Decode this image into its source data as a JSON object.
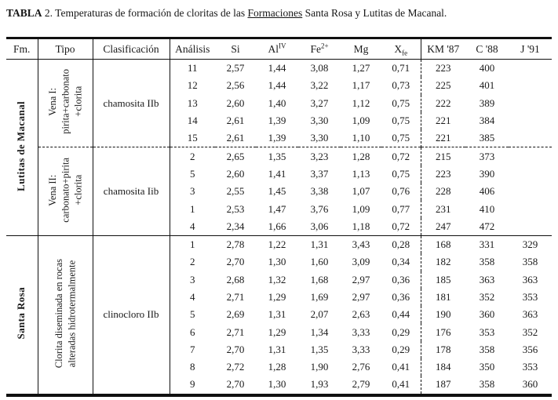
{
  "title": {
    "bold": "TABLA",
    "text_before_underline": " 2. Temperaturas de formación de cloritas de las ",
    "underlined": "Formaciones",
    "text_after_underline": " Santa Rosa y Lutitas de Macanal."
  },
  "table": {
    "columns": [
      {
        "label": "Fm."
      },
      {
        "label": "Tipo"
      },
      {
        "label": "Clasificación"
      },
      {
        "label": "Análisis"
      },
      {
        "label": "Si"
      },
      {
        "label": "Al",
        "sup": "IV"
      },
      {
        "label": "Fe",
        "sup": "2+"
      },
      {
        "label": "Mg"
      },
      {
        "label": "X",
        "sub": "fe"
      },
      {
        "label": "KM '87"
      },
      {
        "label": "C '88"
      },
      {
        "label": "J '91"
      }
    ],
    "groups": [
      {
        "fm": "Lutitas de Macanal",
        "subgroups": [
          {
            "tipo_lines": [
              "Vena I:",
              "pirita+carbonato",
              "+clorita"
            ],
            "clasificacion": "chamosita IIb",
            "rows": [
              [
                "11",
                "2,57",
                "1,44",
                "3,08",
                "1,27",
                "0,71",
                "223",
                "400",
                ""
              ],
              [
                "12",
                "2,56",
                "1,44",
                "3,22",
                "1,17",
                "0,73",
                "225",
                "401",
                ""
              ],
              [
                "13",
                "2,60",
                "1,40",
                "3,27",
                "1,12",
                "0,75",
                "222",
                "389",
                ""
              ],
              [
                "14",
                "2,61",
                "1,39",
                "3,30",
                "1,09",
                "0,75",
                "221",
                "384",
                ""
              ],
              [
                "15",
                "2,61",
                "1,39",
                "3,30",
                "1,10",
                "0,75",
                "221",
                "385",
                ""
              ]
            ]
          },
          {
            "tipo_lines": [
              "Vena II:",
              "carbonato+pirita",
              "+clorita"
            ],
            "clasificacion": "chamosita Iib",
            "rows": [
              [
                "2",
                "2,65",
                "1,35",
                "3,23",
                "1,28",
                "0,72",
                "215",
                "373",
                ""
              ],
              [
                "5",
                "2,60",
                "1,41",
                "3,37",
                "1,13",
                "0,75",
                "223",
                "390",
                ""
              ],
              [
                "3",
                "2,55",
                "1,45",
                "3,38",
                "1,07",
                "0,76",
                "228",
                "406",
                ""
              ],
              [
                "1",
                "2,53",
                "1,47",
                "3,76",
                "1,09",
                "0,77",
                "231",
                "410",
                ""
              ],
              [
                "4",
                "2,34",
                "1,66",
                "3,06",
                "1,18",
                "0,72",
                "247",
                "472",
                ""
              ]
            ]
          }
        ]
      },
      {
        "fm": "Santa Rosa",
        "subgroups": [
          {
            "tipo_lines": [
              "Clorita diseminada en rocas",
              "alteradas hidrotermalmente"
            ],
            "clasificacion": "clinocloro IIb",
            "rows": [
              [
                "1",
                "2,78",
                "1,22",
                "1,31",
                "3,43",
                "0,28",
                "168",
                "331",
                "329"
              ],
              [
                "2",
                "2,70",
                "1,30",
                "1,60",
                "3,09",
                "0,34",
                "182",
                "358",
                "358"
              ],
              [
                "3",
                "2,68",
                "1,32",
                "1,68",
                "2,97",
                "0,36",
                "185",
                "363",
                "363"
              ],
              [
                "4",
                "2,71",
                "1,29",
                "1,69",
                "2,97",
                "0,36",
                "181",
                "352",
                "353"
              ],
              [
                "5",
                "2,69",
                "1,31",
                "2,07",
                "2,63",
                "0,44",
                "190",
                "360",
                "363"
              ],
              [
                "6",
                "2,71",
                "1,29",
                "1,34",
                "3,33",
                "0,29",
                "176",
                "353",
                "352"
              ],
              [
                "7",
                "2,70",
                "1,31",
                "1,35",
                "3,33",
                "0,29",
                "178",
                "358",
                "356"
              ],
              [
                "8",
                "2,72",
                "1,28",
                "1,90",
                "2,76",
                "0,41",
                "184",
                "350",
                "353"
              ],
              [
                "9",
                "2,70",
                "1,30",
                "1,93",
                "2,79",
                "0,41",
                "187",
                "358",
                "360"
              ]
            ]
          }
        ]
      }
    ]
  }
}
